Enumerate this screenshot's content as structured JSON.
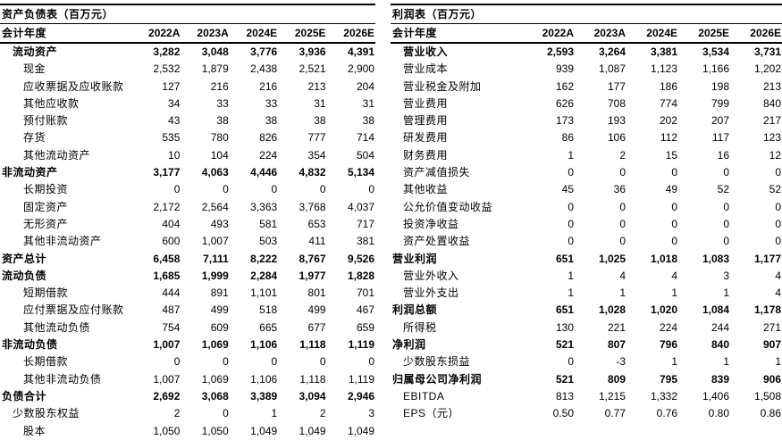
{
  "page": {
    "background_color": "#ffffff",
    "text_color": "#000000",
    "rule_color": "#000000"
  },
  "balance_sheet": {
    "title": "资产负债表（百万元）",
    "header_label": "会计年度",
    "years": [
      "2022A",
      "2023A",
      "2024E",
      "2025E",
      "2026E"
    ],
    "rows": [
      {
        "label": "流动资产",
        "bold": true,
        "indent": 1,
        "values": [
          "3,282",
          "3,048",
          "3,776",
          "3,936",
          "4,391"
        ]
      },
      {
        "label": "现金",
        "bold": false,
        "indent": 2,
        "values": [
          "2,532",
          "1,879",
          "2,438",
          "2,521",
          "2,900"
        ]
      },
      {
        "label": "应收票据及应收账款",
        "bold": false,
        "indent": 2,
        "values": [
          "127",
          "216",
          "216",
          "213",
          "204"
        ]
      },
      {
        "label": "其他应收款",
        "bold": false,
        "indent": 2,
        "values": [
          "34",
          "33",
          "33",
          "31",
          "31"
        ]
      },
      {
        "label": "预付账款",
        "bold": false,
        "indent": 2,
        "values": [
          "43",
          "38",
          "38",
          "38",
          "38"
        ]
      },
      {
        "label": "存货",
        "bold": false,
        "indent": 2,
        "values": [
          "535",
          "780",
          "826",
          "777",
          "714"
        ]
      },
      {
        "label": "其他流动资产",
        "bold": false,
        "indent": 2,
        "values": [
          "10",
          "104",
          "224",
          "354",
          "504"
        ]
      },
      {
        "label": "非流动资产",
        "bold": true,
        "indent": 0,
        "values": [
          "3,177",
          "4,063",
          "4,446",
          "4,832",
          "5,134"
        ]
      },
      {
        "label": "长期投资",
        "bold": false,
        "indent": 2,
        "values": [
          "0",
          "0",
          "0",
          "0",
          "0"
        ]
      },
      {
        "label": "固定资产",
        "bold": false,
        "indent": 2,
        "values": [
          "2,172",
          "2,564",
          "3,363",
          "3,768",
          "4,037"
        ]
      },
      {
        "label": "无形资产",
        "bold": false,
        "indent": 2,
        "values": [
          "404",
          "493",
          "581",
          "653",
          "717"
        ]
      },
      {
        "label": "其他非流动资产",
        "bold": false,
        "indent": 2,
        "values": [
          "600",
          "1,007",
          "503",
          "411",
          "381"
        ]
      },
      {
        "label": "资产总计",
        "bold": true,
        "indent": 0,
        "values": [
          "6,458",
          "7,111",
          "8,222",
          "8,767",
          "9,526"
        ]
      },
      {
        "label": "流动负债",
        "bold": true,
        "indent": 0,
        "values": [
          "1,685",
          "1,999",
          "2,284",
          "1,977",
          "1,828"
        ]
      },
      {
        "label": "短期借款",
        "bold": false,
        "indent": 2,
        "values": [
          "444",
          "891",
          "1,101",
          "801",
          "701"
        ]
      },
      {
        "label": "应付票据及应付账款",
        "bold": false,
        "indent": 2,
        "values": [
          "487",
          "499",
          "518",
          "499",
          "467"
        ]
      },
      {
        "label": "其他流动负债",
        "bold": false,
        "indent": 2,
        "values": [
          "754",
          "609",
          "665",
          "677",
          "659"
        ]
      },
      {
        "label": "非流动负债",
        "bold": true,
        "indent": 0,
        "values": [
          "1,007",
          "1,069",
          "1,106",
          "1,118",
          "1,119"
        ]
      },
      {
        "label": "长期借款",
        "bold": false,
        "indent": 2,
        "values": [
          "0",
          "0",
          "0",
          "0",
          "0"
        ]
      },
      {
        "label": "其他非流动负债",
        "bold": false,
        "indent": 2,
        "values": [
          "1,007",
          "1,069",
          "1,106",
          "1,118",
          "1,119"
        ]
      },
      {
        "label": "负债合计",
        "bold": true,
        "indent": 0,
        "values": [
          "2,692",
          "3,068",
          "3,389",
          "3,094",
          "2,946"
        ]
      },
      {
        "label": "少数股东权益",
        "bold": false,
        "indent": 1,
        "values": [
          "2",
          "0",
          "1",
          "2",
          "3"
        ]
      },
      {
        "label": "股本",
        "bold": false,
        "indent": 2,
        "values": [
          "1,050",
          "1,050",
          "1,049",
          "1,049",
          "1,049"
        ]
      }
    ]
  },
  "income_statement": {
    "title": "利润表（百万元）",
    "header_label": "会计年度",
    "years": [
      "2022A",
      "2023A",
      "2024E",
      "2025E",
      "2026E"
    ],
    "rows": [
      {
        "label": "营业收入",
        "bold": true,
        "indent": 1,
        "values": [
          "2,593",
          "3,264",
          "3,381",
          "3,534",
          "3,731"
        ]
      },
      {
        "label": "营业成本",
        "bold": false,
        "indent": 1,
        "values": [
          "939",
          "1,087",
          "1,123",
          "1,166",
          "1,202"
        ]
      },
      {
        "label": "营业税金及附加",
        "bold": false,
        "indent": 1,
        "values": [
          "162",
          "177",
          "186",
          "198",
          "213"
        ]
      },
      {
        "label": "营业费用",
        "bold": false,
        "indent": 1,
        "values": [
          "626",
          "708",
          "774",
          "799",
          "840"
        ]
      },
      {
        "label": "管理费用",
        "bold": false,
        "indent": 1,
        "values": [
          "173",
          "193",
          "202",
          "207",
          "217"
        ]
      },
      {
        "label": "研发费用",
        "bold": false,
        "indent": 1,
        "values": [
          "86",
          "106",
          "112",
          "117",
          "123"
        ]
      },
      {
        "label": "财务费用",
        "bold": false,
        "indent": 1,
        "values": [
          "1",
          "2",
          "15",
          "16",
          "12"
        ]
      },
      {
        "label": "资产减值损失",
        "bold": false,
        "indent": 1,
        "values": [
          "0",
          "0",
          "0",
          "0",
          "0"
        ]
      },
      {
        "label": "其他收益",
        "bold": false,
        "indent": 1,
        "values": [
          "45",
          "36",
          "49",
          "52",
          "52"
        ]
      },
      {
        "label": "公允价值变动收益",
        "bold": false,
        "indent": 1,
        "values": [
          "0",
          "0",
          "0",
          "0",
          "0"
        ]
      },
      {
        "label": "投资净收益",
        "bold": false,
        "indent": 1,
        "values": [
          "0",
          "0",
          "0",
          "0",
          "0"
        ]
      },
      {
        "label": "资产处置收益",
        "bold": false,
        "indent": 1,
        "values": [
          "0",
          "0",
          "0",
          "0",
          "0"
        ]
      },
      {
        "label": "营业利润",
        "bold": true,
        "indent": 0,
        "values": [
          "651",
          "1,025",
          "1,018",
          "1,083",
          "1,177"
        ]
      },
      {
        "label": "营业外收入",
        "bold": false,
        "indent": 1,
        "values": [
          "1",
          "4",
          "4",
          "3",
          "4"
        ]
      },
      {
        "label": "营业外支出",
        "bold": false,
        "indent": 1,
        "values": [
          "1",
          "1",
          "1",
          "1",
          "4"
        ]
      },
      {
        "label": "利润总额",
        "bold": true,
        "indent": 0,
        "values": [
          "651",
          "1,028",
          "1,020",
          "1,084",
          "1,178"
        ]
      },
      {
        "label": "所得税",
        "bold": false,
        "indent": 1,
        "values": [
          "130",
          "221",
          "224",
          "244",
          "271"
        ]
      },
      {
        "label": "净利润",
        "bold": true,
        "indent": 0,
        "values": [
          "521",
          "807",
          "796",
          "840",
          "907"
        ]
      },
      {
        "label": "少数股东损益",
        "bold": false,
        "indent": 1,
        "values": [
          "0",
          "-3",
          "1",
          "1",
          "1"
        ]
      },
      {
        "label": "归属母公司净利润",
        "bold": true,
        "indent": 0,
        "values": [
          "521",
          "809",
          "795",
          "839",
          "906"
        ]
      },
      {
        "label": "EBITDA",
        "bold": false,
        "indent": 1,
        "values": [
          "813",
          "1,215",
          "1,332",
          "1,406",
          "1,508"
        ]
      },
      {
        "label": "EPS（元）",
        "bold": false,
        "indent": 1,
        "values": [
          "0.50",
          "0.77",
          "0.76",
          "0.80",
          "0.86"
        ]
      }
    ]
  }
}
